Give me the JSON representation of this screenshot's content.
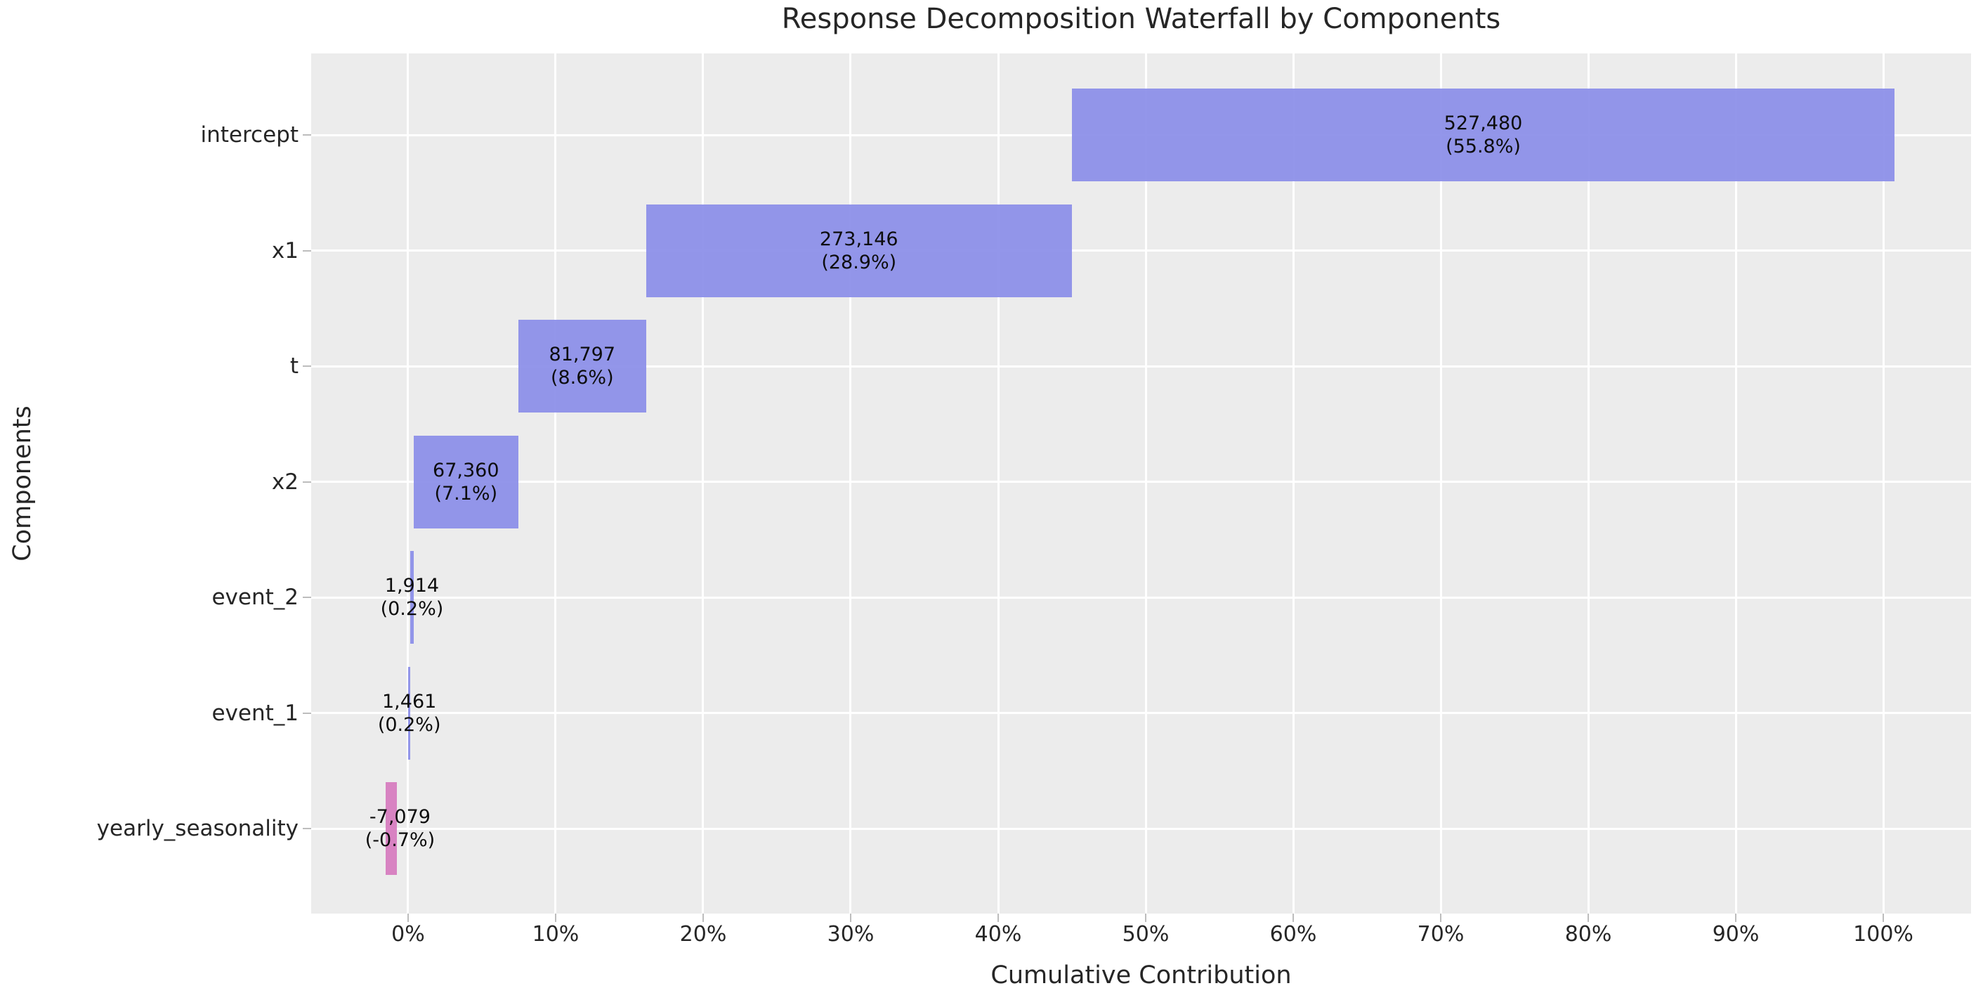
{
  "chart_data": {
    "type": "bar",
    "subtype": "horizontal-waterfall",
    "title": "Response Decomposition Waterfall by Components",
    "xlabel": "Cumulative Contribution",
    "ylabel": "Components",
    "grid": true,
    "legend": "none",
    "xlim_pct": [
      -6.57,
      105.95
    ],
    "x_ticks": [
      {
        "value": 0,
        "label": "0%"
      },
      {
        "value": 10,
        "label": "10%"
      },
      {
        "value": 20,
        "label": "20%"
      },
      {
        "value": 30,
        "label": "30%"
      },
      {
        "value": 40,
        "label": "40%"
      },
      {
        "value": 50,
        "label": "50%"
      },
      {
        "value": 60,
        "label": "60%"
      },
      {
        "value": 70,
        "label": "70%"
      },
      {
        "value": 80,
        "label": "80%"
      },
      {
        "value": 90,
        "label": "90%"
      },
      {
        "value": 100,
        "label": "100%"
      }
    ],
    "categories": [
      "intercept",
      "x1",
      "t",
      "x2",
      "event_2",
      "event_1",
      "yearly_seasonality"
    ],
    "values": [
      527480,
      273146,
      81797,
      67360,
      1914,
      1461,
      -7079
    ],
    "bars": [
      {
        "category": "intercept",
        "value": 527480,
        "value_label": "527,480",
        "pct_label": "(55.8%)",
        "span_pct": [
          45.0,
          100.76
        ],
        "sign": "positive",
        "label_center_pct": 72.88
      },
      {
        "category": "x1",
        "value": 273146,
        "value_label": "273,146",
        "pct_label": "(28.9%)",
        "span_pct": [
          16.13,
          45.0
        ],
        "sign": "positive",
        "label_center_pct": 30.56
      },
      {
        "category": "t",
        "value": 81797,
        "value_label": "81,797",
        "pct_label": "(8.6%)",
        "span_pct": [
          7.48,
          16.13
        ],
        "sign": "positive",
        "label_center_pct": 11.8
      },
      {
        "category": "x2",
        "value": 67360,
        "value_label": "67,360",
        "pct_label": "(7.1%)",
        "span_pct": [
          0.36,
          7.48
        ],
        "sign": "positive",
        "label_center_pct": 3.92
      },
      {
        "category": "event_2",
        "value": 1914,
        "value_label": "1,914",
        "pct_label": "(0.2%)",
        "span_pct": [
          0.16,
          0.36
        ],
        "sign": "positive",
        "label_center_pct": 0.26
      },
      {
        "category": "event_1",
        "value": 1461,
        "value_label": "1,461",
        "pct_label": "(0.2%)",
        "span_pct": [
          0.0,
          0.16
        ],
        "sign": "positive",
        "label_center_pct": 0.08
      },
      {
        "category": "yearly_seasonality",
        "value": -7079,
        "value_label": "-7,079",
        "pct_label": "(-0.7%)",
        "span_pct": [
          -1.5,
          -0.75
        ],
        "sign": "negative",
        "label_center_pct": -0.55
      }
    ],
    "colors": {
      "positive": "#8b8ee8",
      "negative": "#d67bbe",
      "plot_background": "#ececec",
      "gridline": "#ffffff",
      "text": "#262626",
      "bar_label_text": "#0d0d0d"
    }
  }
}
